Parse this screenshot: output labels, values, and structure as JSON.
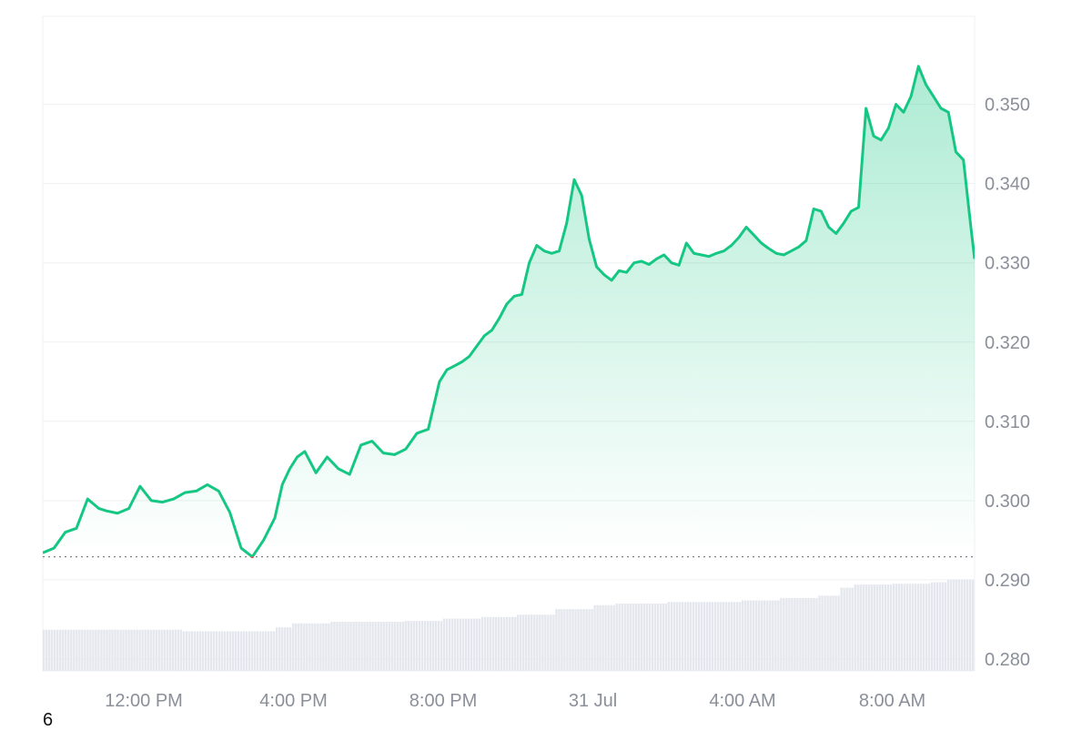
{
  "chart_data": {
    "type": "area",
    "title": "",
    "xlabel": "",
    "ylabel": "",
    "y_ticks": [
      "0.350",
      "0.340",
      "0.330",
      "0.320",
      "0.310",
      "0.300",
      "0.290",
      "0.280"
    ],
    "y_tick_values": [
      0.35,
      0.34,
      0.33,
      0.32,
      0.31,
      0.3,
      0.29,
      0.28
    ],
    "x_ticks": [
      "12:00 PM",
      "4:00 PM",
      "8:00 PM",
      "31 Jul",
      "4:00 AM",
      "8:00 AM"
    ],
    "x_tick_hours": [
      12,
      16,
      20,
      24,
      28,
      32
    ],
    "x_range_hours": [
      9.3,
      34.2
    ],
    "ylim": [
      0.2785,
      0.3611
    ],
    "grid": true,
    "baseline_value": 0.2929,
    "colors": {
      "line_above": "#16c784",
      "line_below": "#ea3943",
      "fill": "#16c784",
      "volume": "#e4e7ed",
      "baseline": "#7c828c"
    },
    "series": [
      {
        "x_hours": [
          9.3,
          9.6,
          9.9,
          10.2,
          10.5,
          10.8,
          11.0,
          11.3,
          11.6,
          11.9,
          12.2,
          12.5,
          12.8,
          13.1,
          13.4,
          13.7,
          14.0,
          14.3,
          14.6,
          14.9,
          15.2,
          15.5,
          15.7,
          15.9,
          16.1,
          16.3,
          16.6,
          16.9,
          17.2,
          17.5,
          17.8,
          18.1,
          18.4,
          18.7,
          19.0,
          19.3,
          19.6,
          19.9,
          20.1,
          20.3,
          20.5,
          20.7,
          20.9,
          21.1,
          21.3,
          21.5,
          21.7,
          21.9,
          22.1,
          22.3,
          22.5,
          22.7,
          22.9,
          23.1,
          23.3,
          23.5,
          23.7,
          23.9,
          24.1,
          24.3,
          24.5,
          24.7,
          24.9,
          25.1,
          25.3,
          25.5,
          25.7,
          25.9,
          26.1,
          26.3,
          26.5,
          26.7,
          26.9,
          27.1,
          27.3,
          27.5,
          27.7,
          27.9,
          28.1,
          28.3,
          28.5,
          28.7,
          28.9,
          29.1,
          29.3,
          29.5,
          29.7,
          29.9,
          30.1,
          30.3,
          30.5,
          30.7,
          30.9,
          31.1,
          31.3,
          31.5,
          31.7,
          31.9,
          32.1,
          32.3,
          32.5,
          32.7,
          32.9,
          33.1,
          33.3,
          33.5,
          33.7,
          33.9,
          34.1,
          34.2
        ],
        "values": [
          0.2934,
          0.294,
          0.296,
          0.2965,
          0.3002,
          0.299,
          0.2987,
          0.2984,
          0.299,
          0.3018,
          0.3,
          0.2998,
          0.3002,
          0.301,
          0.3012,
          0.302,
          0.3012,
          0.2985,
          0.294,
          0.2929,
          0.295,
          0.2978,
          0.302,
          0.304,
          0.3055,
          0.3062,
          0.3035,
          0.3055,
          0.304,
          0.3033,
          0.307,
          0.3075,
          0.306,
          0.3058,
          0.3065,
          0.3085,
          0.309,
          0.315,
          0.3165,
          0.317,
          0.3175,
          0.3182,
          0.3195,
          0.3208,
          0.3215,
          0.323,
          0.3248,
          0.3258,
          0.326,
          0.33,
          0.3322,
          0.3315,
          0.3312,
          0.3315,
          0.335,
          0.3405,
          0.3385,
          0.333,
          0.3295,
          0.3285,
          0.3278,
          0.329,
          0.3288,
          0.33,
          0.3302,
          0.3298,
          0.3305,
          0.331,
          0.33,
          0.3297,
          0.3325,
          0.3312,
          0.331,
          0.3308,
          0.3312,
          0.3315,
          0.3322,
          0.3332,
          0.3345,
          0.3335,
          0.3325,
          0.3318,
          0.3312,
          0.331,
          0.3315,
          0.332,
          0.3328,
          0.3368,
          0.3365,
          0.3345,
          0.3337,
          0.335,
          0.3365,
          0.337,
          0.3495,
          0.346,
          0.3455,
          0.347,
          0.35,
          0.349,
          0.351,
          0.3548,
          0.3525,
          0.351,
          0.3495,
          0.349,
          0.344,
          0.343,
          0.3345,
          0.3305
        ]
      }
    ],
    "volume": {
      "x_hours": [
        9.3,
        12.0,
        13.0,
        15.0,
        15.5,
        16.0,
        17.0,
        19.0,
        20.0,
        21.0,
        22.0,
        23.0,
        24.0,
        24.6,
        26.0,
        28.0,
        29.0,
        30.0,
        30.6,
        31.0,
        32.0,
        33.0,
        33.5,
        34.2
      ],
      "values": [
        0.2837,
        0.2837,
        0.2835,
        0.2835,
        0.284,
        0.2845,
        0.2847,
        0.2848,
        0.2851,
        0.2853,
        0.2856,
        0.2863,
        0.2868,
        0.287,
        0.2872,
        0.2874,
        0.2877,
        0.288,
        0.289,
        0.2894,
        0.2895,
        0.2897,
        0.29,
        0.2904
      ]
    }
  },
  "footnote": "6"
}
